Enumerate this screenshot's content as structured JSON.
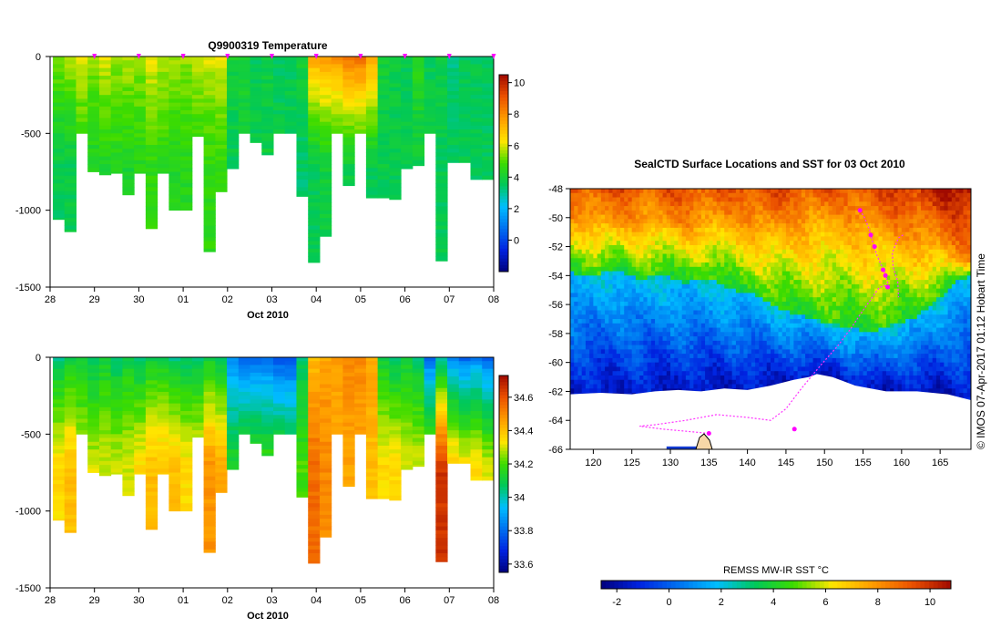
{
  "chart_data": [
    {
      "type": "heatmap",
      "title": "Q9900319  Temperature",
      "xlabel": "",
      "ylabel": "",
      "date_label": "Oct 2010",
      "x_ticks": [
        "28",
        "29",
        "30",
        "01",
        "02",
        "03",
        "04",
        "05",
        "06",
        "07",
        "08"
      ],
      "ylim": [
        -1500,
        0
      ],
      "y_ticks": [
        "0",
        "-500",
        "-1000",
        "-1500"
      ],
      "colorbar": {
        "min": -2,
        "max": 10.5,
        "ticks": [
          "10",
          "8",
          "6",
          "4",
          "2",
          "0"
        ]
      },
      "profile_markers": [
        "29",
        "30",
        "01",
        "02",
        "03",
        "04",
        "05",
        "06",
        "07",
        "08"
      ],
      "profiles": {
        "max_depth": [
          1060,
          1140,
          500,
          750,
          770,
          760,
          900,
          760,
          1120,
          760,
          1000,
          1000,
          520,
          1270,
          880,
          730,
          500,
          560,
          640,
          500,
          500,
          910,
          1340,
          1170,
          500,
          840,
          500,
          920,
          920,
          930,
          730,
          710,
          500,
          1330,
          690,
          690,
          800,
          800
        ],
        "surface": [
          5.5,
          5.8,
          6.0,
          5.5,
          6.0,
          5.6,
          5.8,
          5.6,
          6.2,
          5.8,
          5.7,
          5.6,
          5.9,
          6.0,
          6.1,
          4.0,
          4.2,
          3.6,
          3.8,
          3.4,
          3.5,
          4.0,
          7.5,
          7.8,
          7.8,
          8.5,
          8.6,
          7.6,
          4.0,
          3.9,
          3.6,
          4.5,
          3.6,
          3.9,
          3.1,
          3.5,
          3.6,
          3.6
        ],
        "deep": [
          3.6,
          3.7,
          4.4,
          4.2,
          4.3,
          4.4,
          4.2,
          4.4,
          4.6,
          4.5,
          4.3,
          4.4,
          4.4,
          4.6,
          4.7,
          3.6,
          3.8,
          3.7,
          3.8,
          3.8,
          3.8,
          3.4,
          3.6,
          3.9,
          4.0,
          3.8,
          3.9,
          3.6,
          3.7,
          3.6,
          3.7,
          3.8,
          3.8,
          3.6,
          3.6,
          3.6,
          3.5,
          3.5
        ]
      }
    },
    {
      "type": "heatmap",
      "title": "",
      "xlabel": "",
      "ylabel": "",
      "date_label": "Oct 2010",
      "x_ticks": [
        "28",
        "29",
        "30",
        "01",
        "02",
        "03",
        "04",
        "05",
        "06",
        "07",
        "08"
      ],
      "ylim": [
        -1500,
        0
      ],
      "y_ticks": [
        "0",
        "-500",
        "-1000",
        "-1500"
      ],
      "colorbar": {
        "min": 33.55,
        "max": 34.73,
        "ticks": [
          "34.6",
          "34.4",
          "34.2",
          "34",
          "33.8",
          "33.6"
        ]
      },
      "profiles": {
        "max_depth": [
          1060,
          1140,
          500,
          750,
          770,
          760,
          900,
          760,
          1120,
          760,
          1000,
          1000,
          520,
          1270,
          880,
          730,
          500,
          560,
          640,
          500,
          500,
          910,
          1340,
          1170,
          500,
          840,
          500,
          920,
          920,
          930,
          730,
          710,
          500,
          1330,
          690,
          690,
          800,
          800
        ],
        "surface": [
          34.05,
          34.1,
          34.1,
          34.05,
          34.1,
          34.05,
          34.1,
          34.05,
          34.1,
          34.1,
          34.05,
          34.05,
          34.05,
          34.1,
          34.05,
          33.85,
          33.8,
          33.8,
          33.8,
          33.75,
          33.75,
          34.05,
          34.4,
          34.45,
          34.45,
          34.5,
          34.5,
          34.45,
          34.1,
          34.05,
          34.1,
          34.05,
          33.8,
          34.0,
          33.85,
          33.8,
          33.85,
          33.8
        ],
        "deep": [
          34.35,
          34.4,
          34.3,
          34.3,
          34.3,
          34.3,
          34.3,
          34.35,
          34.4,
          34.4,
          34.4,
          34.35,
          34.35,
          34.48,
          34.45,
          34.15,
          34.2,
          34.2,
          34.2,
          34.2,
          34.2,
          34.2,
          34.55,
          34.5,
          34.45,
          34.45,
          34.45,
          34.4,
          34.35,
          34.35,
          34.3,
          34.3,
          34.3,
          34.65,
          34.4,
          34.35,
          34.35,
          34.3
        ]
      }
    },
    {
      "type": "map",
      "title": "SealCTD Surface Locations and SST for 03 Oct 2010",
      "x_ticks": [
        "120",
        "125",
        "130",
        "135",
        "140",
        "145",
        "150",
        "155",
        "160",
        "165"
      ],
      "xlim": [
        117,
        169
      ],
      "y_ticks": [
        "-48",
        "-50",
        "-52",
        "-54",
        "-56",
        "-58",
        "-60",
        "-62",
        "-64",
        "-66"
      ],
      "ylim": [
        -66,
        -48
      ],
      "side_label": "© IMOS 07-Apr-2017 01:12 Hobart Time",
      "colorbar": {
        "label": "REMSS MW-IR SST °C",
        "min": -2.6,
        "max": 10.8,
        "ticks": [
          "-2",
          "0",
          "2",
          "4",
          "6",
          "8",
          "10"
        ]
      },
      "ice_edge": [
        [
          117,
          -62.2
        ],
        [
          121,
          -62.1
        ],
        [
          125,
          -62.2
        ],
        [
          128,
          -62.0
        ],
        [
          131,
          -61.9
        ],
        [
          134,
          -62.0
        ],
        [
          137,
          -61.8
        ],
        [
          140,
          -61.9
        ],
        [
          143,
          -61.6
        ],
        [
          146,
          -61.2
        ],
        [
          148,
          -61.0
        ],
        [
          149,
          -60.8
        ],
        [
          151,
          -61.0
        ],
        [
          154,
          -61.6
        ],
        [
          158,
          -62.0
        ],
        [
          162,
          -62.0
        ],
        [
          166,
          -62.2
        ],
        [
          169,
          -62.6
        ]
      ],
      "front_line": [
        [
          117,
          -53.8
        ],
        [
          120,
          -54.0
        ],
        [
          123,
          -53.6
        ],
        [
          126,
          -54.3
        ],
        [
          129,
          -53.9
        ],
        [
          132,
          -54.5
        ],
        [
          135,
          -54.2
        ],
        [
          138,
          -55.0
        ],
        [
          141,
          -55.3
        ],
        [
          144,
          -56.2
        ],
        [
          147,
          -56.8
        ],
        [
          150,
          -57.2
        ],
        [
          153,
          -57.6
        ],
        [
          156,
          -57.9
        ],
        [
          159,
          -57.4
        ],
        [
          162,
          -56.8
        ],
        [
          165,
          -55.5
        ],
        [
          167,
          -54.5
        ],
        [
          169,
          -54.0
        ]
      ],
      "warm_line": [
        [
          117,
          -50.0
        ],
        [
          122,
          -50.5
        ],
        [
          127,
          -50.2
        ],
        [
          132,
          -50.6
        ],
        [
          137,
          -50.1
        ],
        [
          142,
          -51.0
        ],
        [
          147,
          -50.4
        ],
        [
          152,
          -50.0
        ],
        [
          157,
          -51.0
        ],
        [
          162,
          -51.5
        ],
        [
          166,
          -52.5
        ],
        [
          169,
          -53.0
        ]
      ],
      "tracks": [
        [
          [
            154.6,
            -49.5
          ],
          [
            155.2,
            -50.0
          ],
          [
            155.8,
            -50.8
          ],
          [
            156.3,
            -51.8
          ],
          [
            156.8,
            -52.6
          ],
          [
            157.3,
            -53.2
          ],
          [
            157.9,
            -53.9
          ],
          [
            158.3,
            -54.7
          ],
          [
            157.6,
            -54.7
          ],
          [
            157.0,
            -54.9
          ],
          [
            156.2,
            -55.5
          ],
          [
            155.0,
            -56.4
          ],
          [
            153.5,
            -57.6
          ],
          [
            151.8,
            -58.8
          ],
          [
            149.5,
            -60.2
          ],
          [
            147.0,
            -61.8
          ],
          [
            145.0,
            -63.2
          ],
          [
            143.0,
            -64.0
          ],
          [
            140.0,
            -63.8
          ],
          [
            136.0,
            -63.6
          ],
          [
            132.0,
            -64.0
          ],
          [
            128.0,
            -64.3
          ],
          [
            126.0,
            -64.4
          ],
          [
            129.0,
            -64.6
          ],
          [
            133.0,
            -64.8
          ],
          [
            135.0,
            -64.9
          ]
        ],
        [
          [
            160.2,
            -51.2
          ],
          [
            159.6,
            -51.4
          ],
          [
            158.8,
            -52.4
          ],
          [
            158.9,
            -53.4
          ],
          [
            159.5,
            -54.4
          ],
          [
            159.6,
            -55.5
          ]
        ]
      ],
      "surface_locations": [
        [
          154.6,
          -49.5
        ],
        [
          156.0,
          -51.2
        ],
        [
          156.5,
          -52.0
        ],
        [
          157.6,
          -53.6
        ],
        [
          157.9,
          -54.0
        ],
        [
          158.2,
          -54.8
        ],
        [
          146.1,
          -64.6
        ],
        [
          135.0,
          -64.9
        ]
      ]
    }
  ]
}
